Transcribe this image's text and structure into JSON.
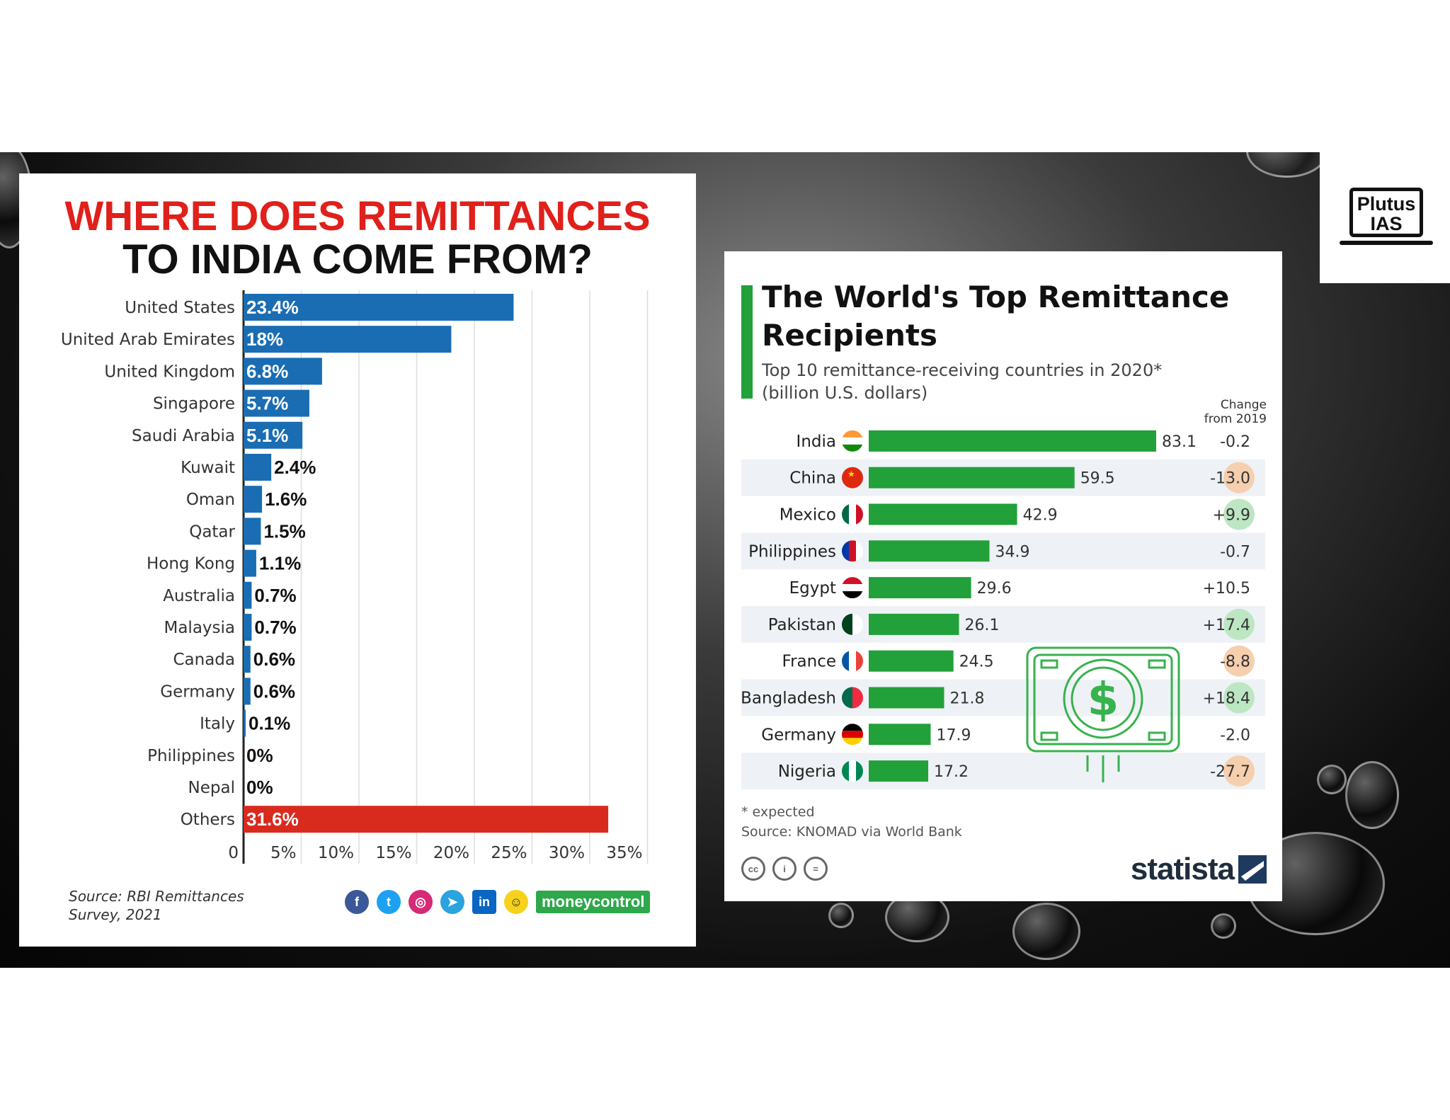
{
  "left_chart": {
    "title_line1": "WHERE DOES REMITTANCES",
    "title_line2": "TO INDIA COME FROM?",
    "source": "Source: RBI Remittances Survey, 2021",
    "brand": "moneycontrol",
    "social_icons": [
      "facebook-icon",
      "twitter-icon",
      "instagram-icon",
      "telegram-icon",
      "linkedin-icon",
      "snapchat-icon"
    ],
    "colors": {
      "primary": "#1a6db3",
      "others": "#d92a1e",
      "title_red": "#e0201b"
    }
  },
  "right_chart": {
    "title": "The World's Top Remittance Recipients",
    "subtitle_line1": "Top 10 remittance-receiving countries in 2020*",
    "subtitle_line2": "(billion U.S. dollars)",
    "change_header_line1": "Change",
    "change_header_line2": "from 2019",
    "footnote": "* expected",
    "source": "Source: KNOMAD via World Bank",
    "brand": "statista",
    "license_icons": [
      "cc-icon",
      "attribution-icon",
      "noderivs-icon"
    ],
    "colors": {
      "bar": "#22a03a",
      "positive": "#bde6c3",
      "negative": "#f5cfae",
      "stripe": "#eef2f6"
    }
  },
  "watermark": {
    "line1": "Plutus",
    "line2": "IAS"
  },
  "chart_data": [
    {
      "type": "bar",
      "orientation": "horizontal",
      "title": "WHERE DOES REMITTANCES TO INDIA COME FROM?",
      "categories": [
        "United States",
        "United Arab Emirates",
        "United Kingdom",
        "Singapore",
        "Saudi Arabia",
        "Kuwait",
        "Oman",
        "Qatar",
        "Hong Kong",
        "Australia",
        "Malaysia",
        "Canada",
        "Germany",
        "Italy",
        "Philippines",
        "Nepal",
        "Others"
      ],
      "values": [
        23.4,
        18,
        6.8,
        5.7,
        5.1,
        2.4,
        1.6,
        1.5,
        1.1,
        0.7,
        0.7,
        0.6,
        0.6,
        0.1,
        0,
        0,
        31.6
      ],
      "value_labels": [
        "23.4%",
        "18%",
        "6.8%",
        "5.7%",
        "5.1%",
        "2.4%",
        "1.6%",
        "1.5%",
        "1.1%",
        "0.7%",
        "0.7%",
        "0.6%",
        "0.6%",
        "0.1%",
        "0%",
        "0%",
        "31.6%"
      ],
      "xticks": [
        "0",
        "5%",
        "10%",
        "15%",
        "20%",
        "25%",
        "30%",
        "35%"
      ],
      "xlim": [
        0,
        35
      ],
      "grid": true
    },
    {
      "type": "bar",
      "orientation": "horizontal",
      "title": "The World's Top Remittance Recipients",
      "categories": [
        "India",
        "China",
        "Mexico",
        "Philippines",
        "Egypt",
        "Pakistan",
        "France",
        "Bangladesh",
        "Germany",
        "Nigeria"
      ],
      "values": [
        83.1,
        59.5,
        42.9,
        34.9,
        29.6,
        26.1,
        24.5,
        21.8,
        17.9,
        17.2
      ],
      "value_labels": [
        "83.1",
        "59.5",
        "42.9",
        "34.9",
        "29.6",
        "26.1",
        "24.5",
        "21.8",
        "17.9",
        "17.2"
      ],
      "change_from_2019": [
        "-0.2",
        "-13.0",
        "+9.9",
        "-0.7",
        "+10.5",
        "+17.4",
        "-8.8",
        "+18.4",
        "-2.0",
        "-27.7"
      ],
      "change_highlight": [
        "none",
        "negative",
        "positive",
        "none",
        "none",
        "positive",
        "negative",
        "positive",
        "none",
        "negative"
      ],
      "flags": [
        "india-flag-icon",
        "china-flag-icon",
        "mexico-flag-icon",
        "philippines-flag-icon",
        "egypt-flag-icon",
        "pakistan-flag-icon",
        "france-flag-icon",
        "bangladesh-flag-icon",
        "germany-flag-icon",
        "nigeria-flag-icon"
      ],
      "xlim": [
        0,
        83.1
      ]
    }
  ]
}
